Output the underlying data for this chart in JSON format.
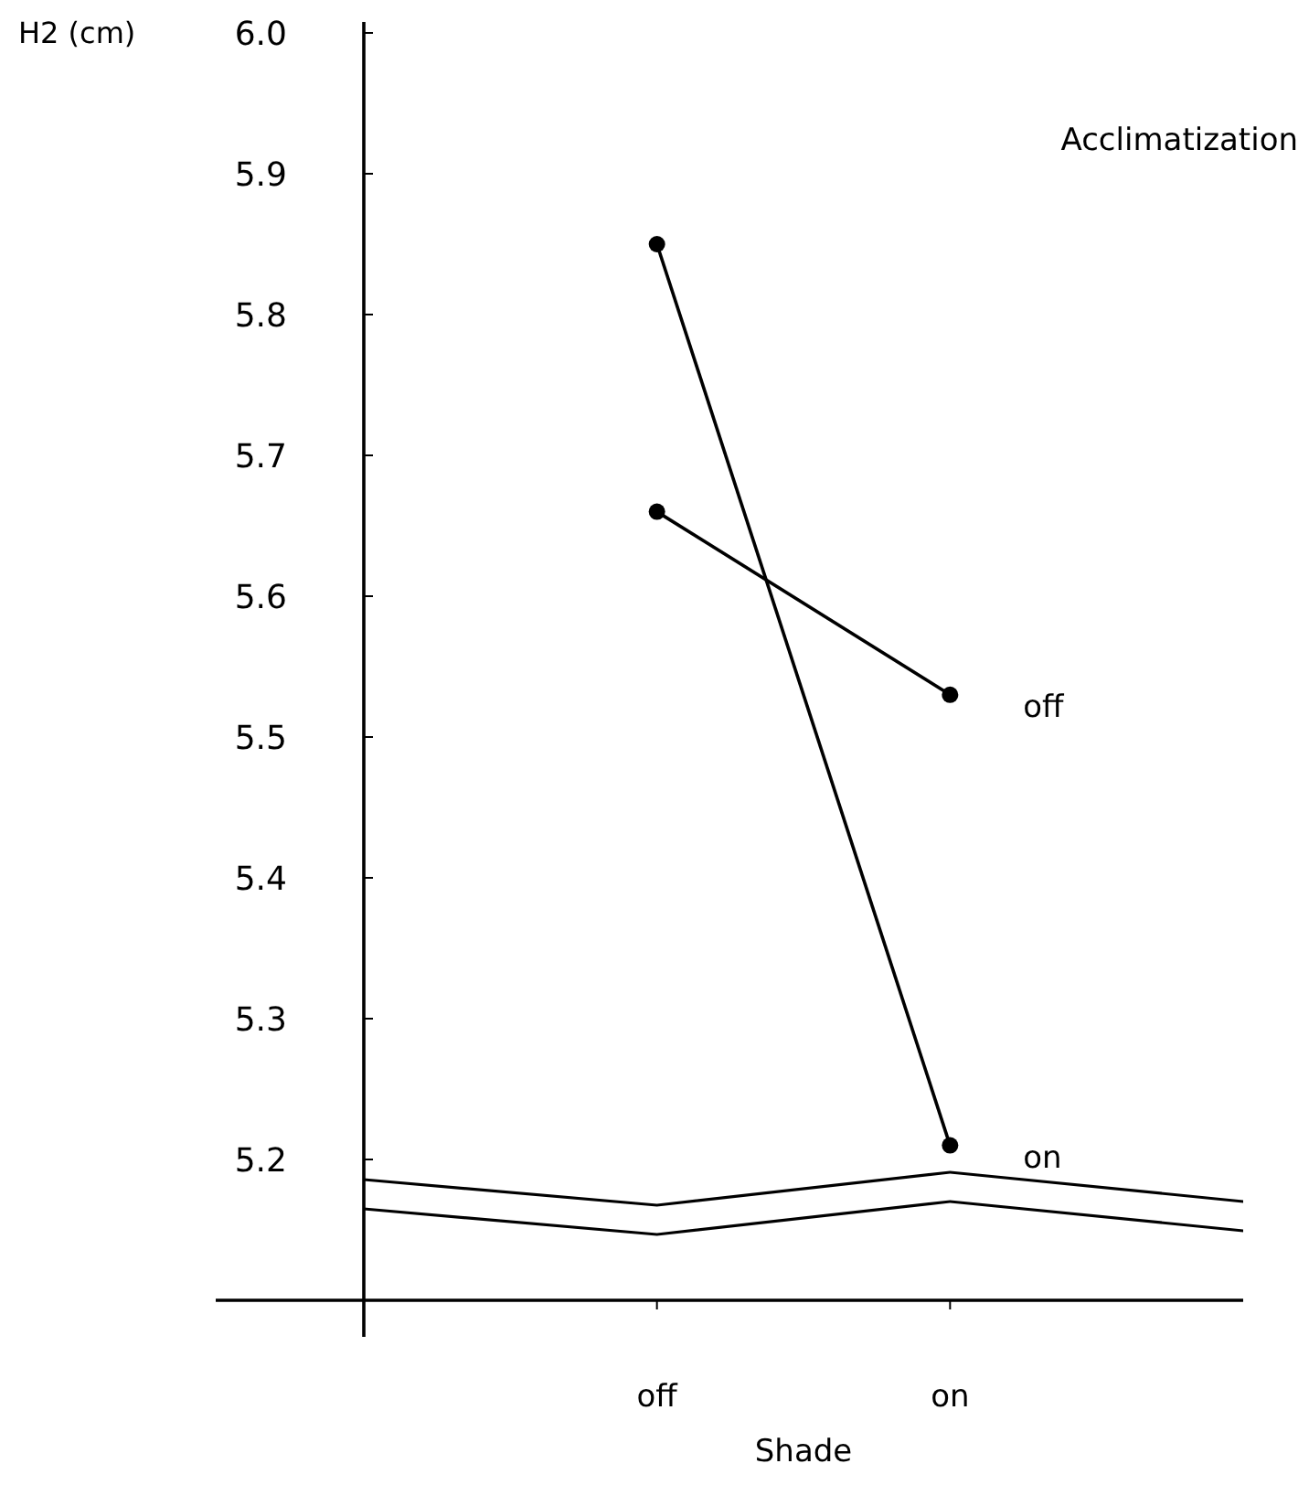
{
  "chart_data": {
    "type": "line",
    "xlabel": "Shade",
    "ylabel": "H2 (cm)",
    "legend_title": "Acclimatization",
    "categories": [
      "off",
      "on"
    ],
    "series": [
      {
        "name": "off",
        "color": "#000000",
        "values": [
          5.66,
          5.53
        ]
      },
      {
        "name": "on",
        "color": "#000000",
        "values": [
          5.85,
          5.21
        ]
      }
    ],
    "ylim": [
      5.1,
      6.0
    ],
    "yticks": [
      {
        "value": 6.0,
        "label": "6.0"
      },
      5.9,
      5.8,
      5.7,
      5.6,
      5.5,
      5.4,
      5.3,
      5.2
    ],
    "marker": "circle",
    "line_style": "solid",
    "legend": "right",
    "grid": false
  }
}
